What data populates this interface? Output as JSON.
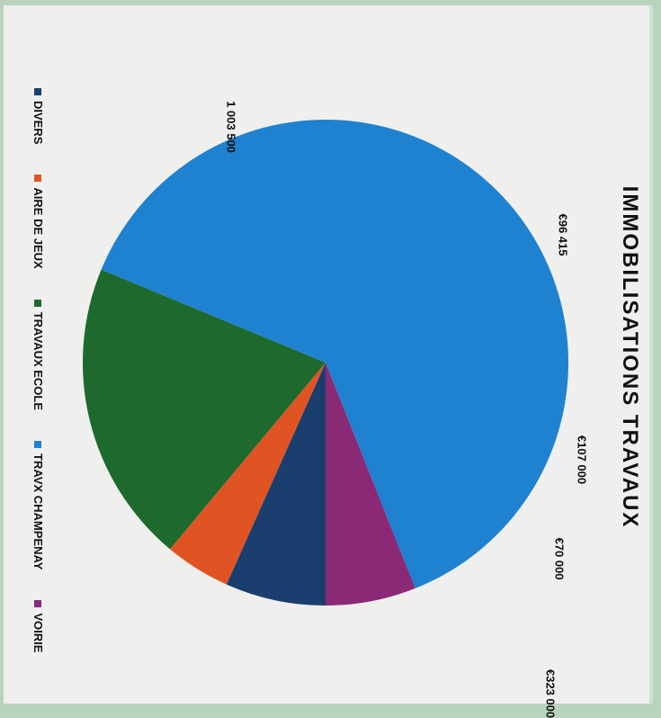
{
  "chart_data": {
    "type": "pie",
    "title": "IMMOBILISATIONS TRAVAUX",
    "slices": [
      {
        "name": "DIVERS",
        "value": 107000,
        "label": "€107 000",
        "color": "#1a3f6e"
      },
      {
        "name": "AIRE DE JEUX",
        "value": 70000,
        "label": "€70 000",
        "color": "#e05423"
      },
      {
        "name": "TRAVAUX ECOLE",
        "value": 323000,
        "label": "€323 000",
        "color": "#1e6a2e"
      },
      {
        "name": "TRAVX CHAMPENAY",
        "value": 1003500,
        "label": "1 003 500",
        "color": "#1f82d0"
      },
      {
        "name": "VOIRIE",
        "value": 96415,
        "label": "€96 415",
        "color": "#8a2a77"
      }
    ],
    "legend": {
      "position": "bottom"
    }
  }
}
